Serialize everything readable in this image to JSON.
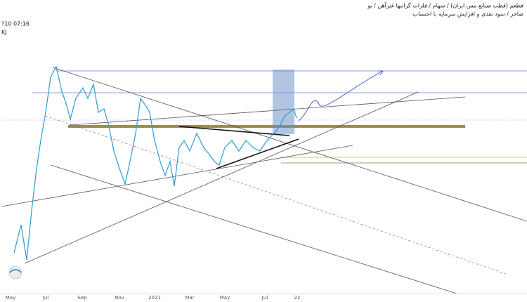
{
  "header": {
    "lines": [
      "فطعم (قطب صنایع مس ایران) / سهام / فلزات گرانبها غیرآهن / بو",
      "ضاخر / سود نقدی و افزایش سرمایه با احتساب"
    ],
    "time": "?10 07:16",
    "code": "KJ"
  },
  "x_axis": {
    "labels": [
      "May",
      "Jul",
      "Sep",
      "Nov",
      "2021",
      "Mar",
      "May",
      "Jul",
      "22"
    ]
  }
}
